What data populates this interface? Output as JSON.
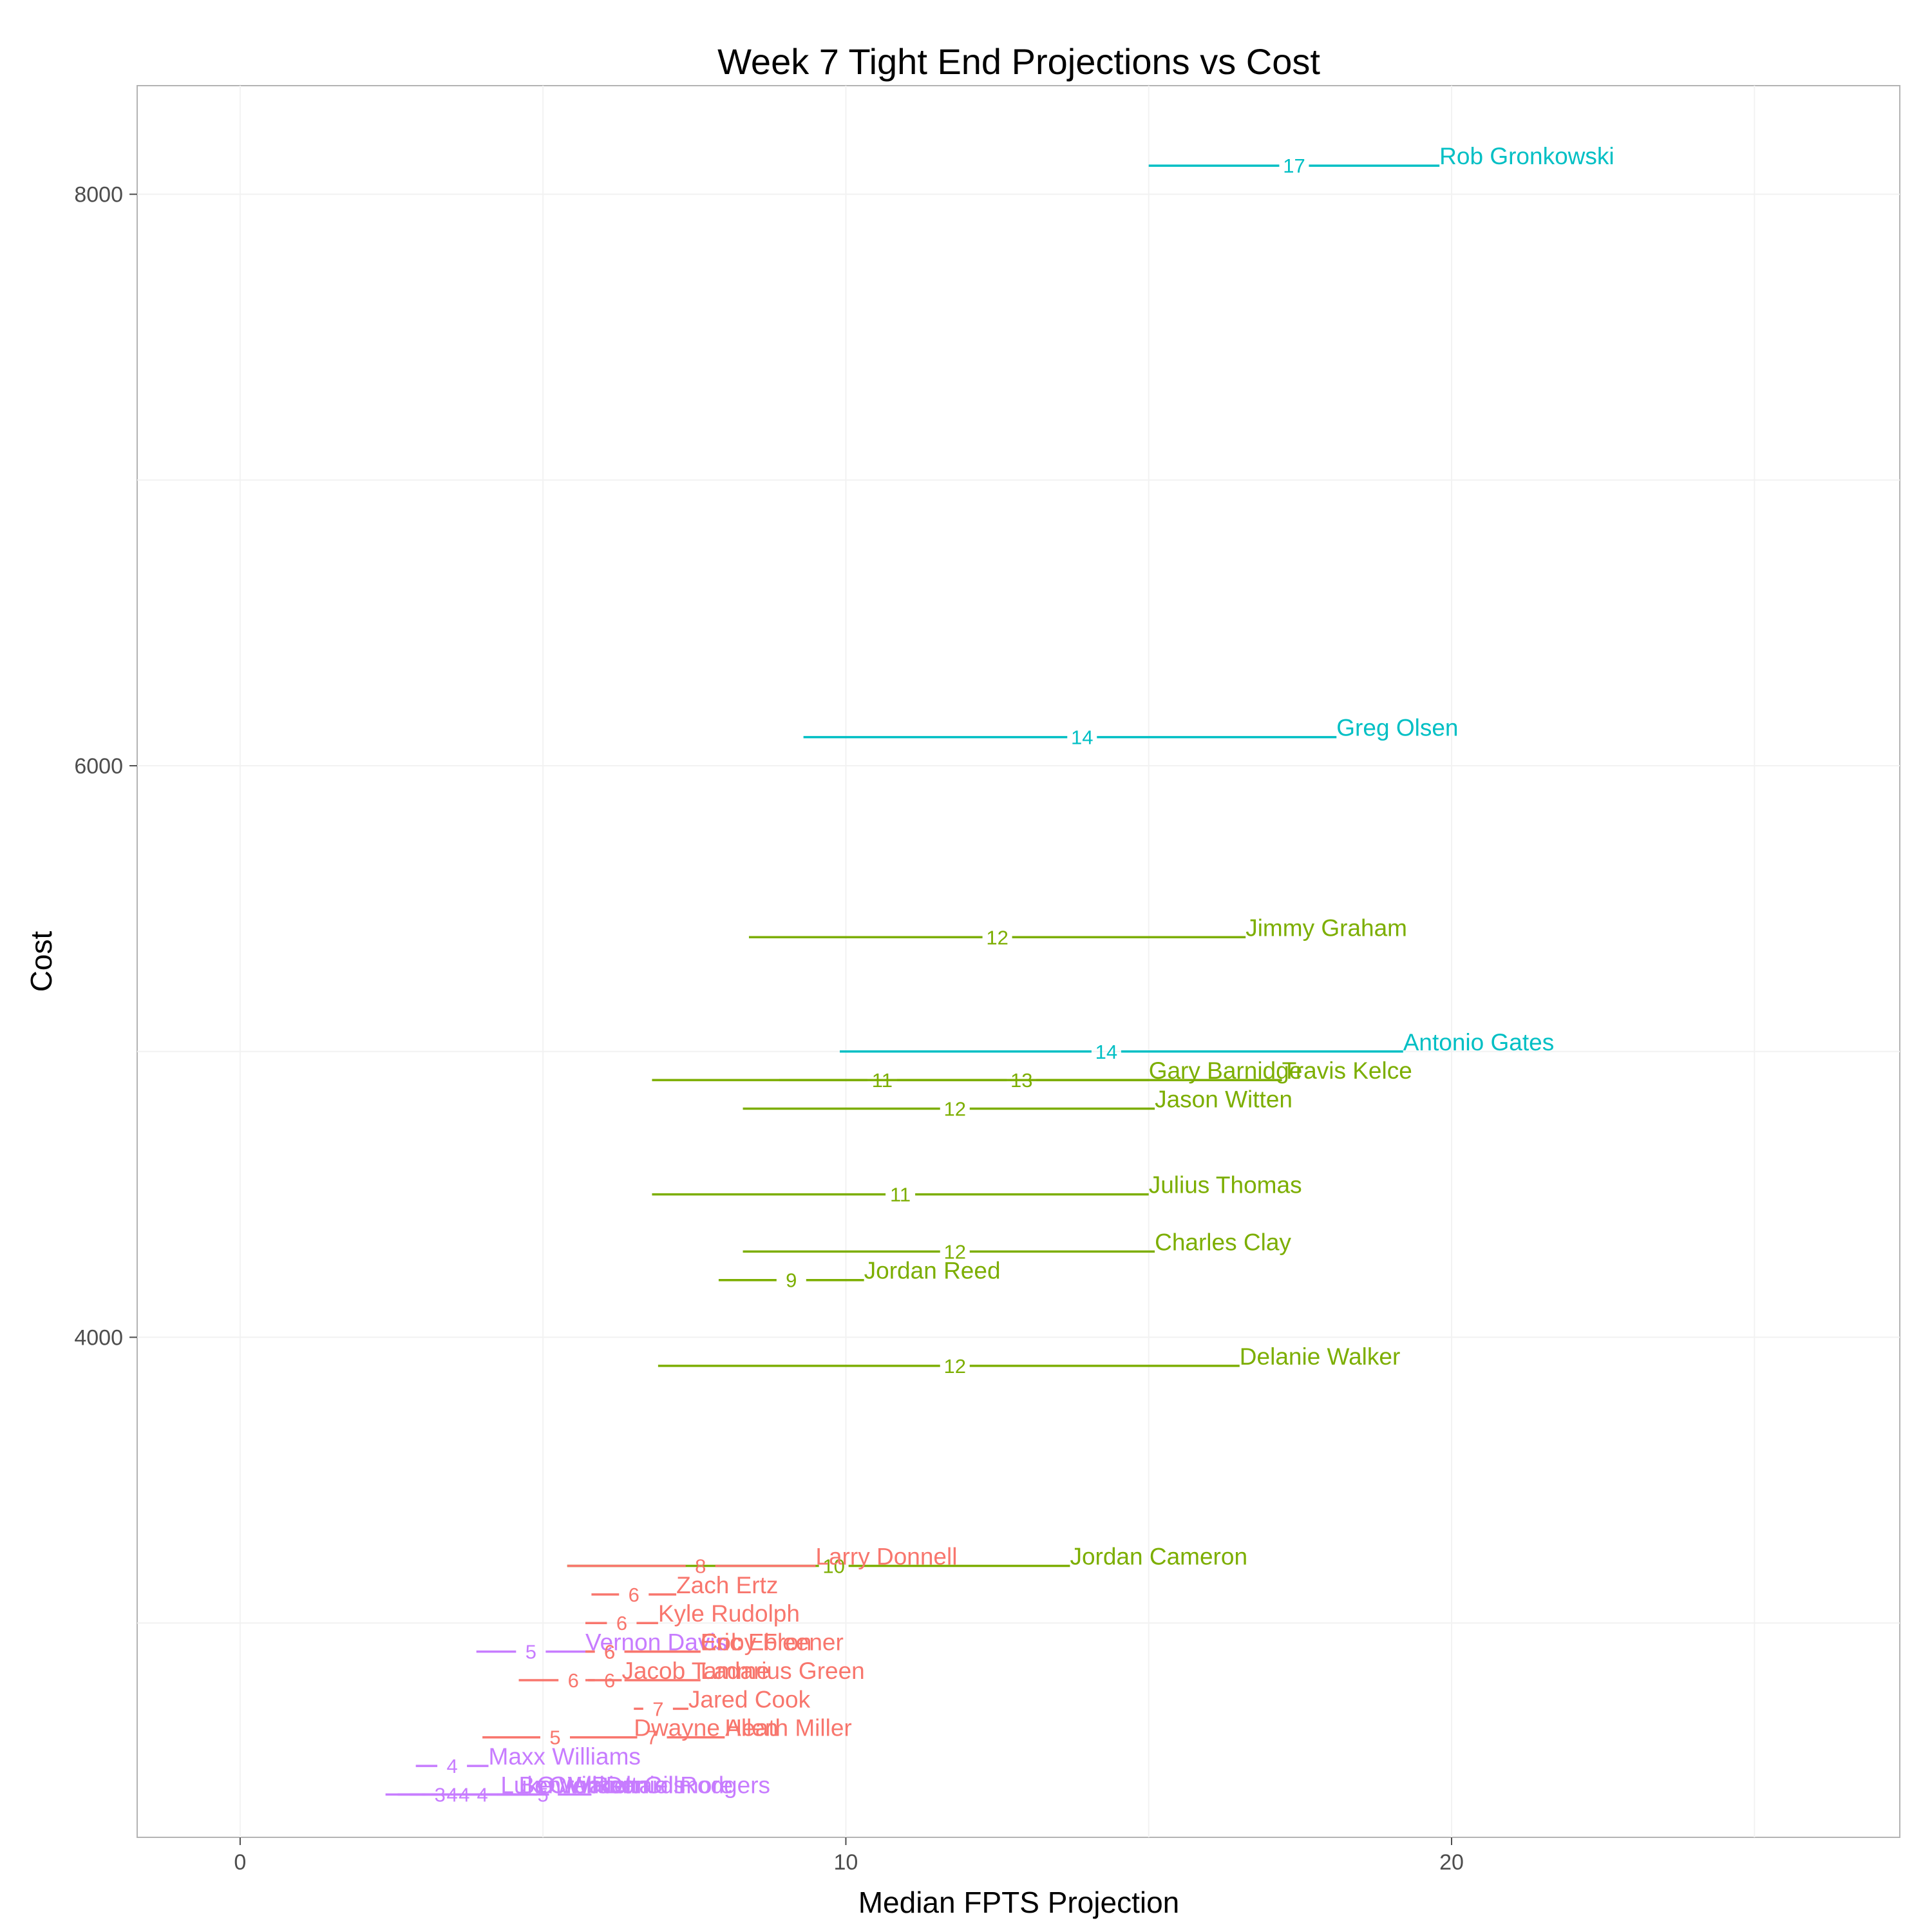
{
  "chart_data": {
    "type": "errorbar",
    "title": "Week 7 Tight End Projections vs Cost",
    "xlabel": "Median FPTS Projection",
    "ylabel": "Cost",
    "xlim": [
      -1.7,
      27.4
    ],
    "ylim": [
      2250,
      8380
    ],
    "xticks": [
      0,
      10,
      20
    ],
    "yticks": [
      4000,
      6000,
      8000
    ],
    "grid": true,
    "legend": "none",
    "series_colors": {
      "teal": "#00BFC4",
      "green": "#7CAE00",
      "red": "#F8766D",
      "purple": "#C77CFF"
    },
    "points": [
      {
        "name": "Rob Gronkowski",
        "color": "teal",
        "cost": 8100,
        "median": 17.4,
        "label": "17",
        "low": 15.0,
        "high": 19.8
      },
      {
        "name": "Greg Olsen",
        "color": "teal",
        "cost": 6100,
        "median": 13.9,
        "label": "14",
        "low": 9.3,
        "high": 18.1
      },
      {
        "name": "Jimmy Graham",
        "color": "green",
        "cost": 5400,
        "median": 12.5,
        "label": "12",
        "low": 8.4,
        "high": 16.6
      },
      {
        "name": "Antonio Gates",
        "color": "teal",
        "cost": 5000,
        "median": 14.3,
        "label": "14",
        "low": 9.9,
        "high": 19.2
      },
      {
        "name": "Gary Barnidge",
        "color": "green",
        "cost": 4900,
        "median": 10.6,
        "label": "11",
        "low": 6.8,
        "high": 15.0
      },
      {
        "name": "Travis Kelce",
        "color": "green",
        "cost": 4900,
        "median": 12.9,
        "label": "13",
        "low": 8.9,
        "high": 17.2
      },
      {
        "name": "Jason Witten",
        "color": "green",
        "cost": 4800,
        "median": 11.8,
        "label": "12",
        "low": 8.3,
        "high": 15.1
      },
      {
        "name": "Julius Thomas",
        "color": "green",
        "cost": 4500,
        "median": 10.9,
        "label": "11",
        "low": 6.8,
        "high": 15.0
      },
      {
        "name": "Charles Clay",
        "color": "green",
        "cost": 4300,
        "median": 11.8,
        "label": "12",
        "low": 8.3,
        "high": 15.1
      },
      {
        "name": "Jordan Reed",
        "color": "green",
        "cost": 4200,
        "median": 9.1,
        "label": "9",
        "low": 7.9,
        "high": 10.3
      },
      {
        "name": "Delanie Walker",
        "color": "green",
        "cost": 3900,
        "median": 11.8,
        "label": "12",
        "low": 6.9,
        "high": 16.5
      },
      {
        "name": "Jordan Cameron",
        "color": "green",
        "cost": 3200,
        "median": 9.8,
        "label": "10",
        "low": 5.4,
        "high": 13.7
      },
      {
        "name": "Larry Donnell",
        "color": "red",
        "cost": 3200,
        "median": 7.6,
        "label": "8",
        "low": 5.4,
        "high": 9.5
      },
      {
        "name": "Zach Ertz",
        "color": "red",
        "cost": 3100,
        "median": 6.5,
        "label": "6",
        "low": 5.8,
        "high": 7.2
      },
      {
        "name": "Kyle Rudolph",
        "color": "red",
        "cost": 3000,
        "median": 6.3,
        "label": "6",
        "low": 5.7,
        "high": 6.9
      },
      {
        "name": "Vernon Davis",
        "color": "purple",
        "cost": 2900,
        "median": 4.8,
        "label": "5",
        "low": 3.9,
        "high": 5.7
      },
      {
        "name": "Coby Fleener",
        "color": "red",
        "cost": 2900,
        "median": 6.1,
        "label": "6",
        "low": 5.7,
        "high": 7.6
      },
      {
        "name": "Eric Ebron",
        "color": "red",
        "cost": 2900,
        "median": 6.1,
        "label": "6",
        "low": 5.7,
        "high": 7.6
      },
      {
        "name": "Jacob Tamme",
        "color": "red",
        "cost": 2800,
        "median": 5.5,
        "label": "6",
        "low": 4.6,
        "high": 6.3
      },
      {
        "name": "Ladarius Green",
        "color": "red",
        "cost": 2800,
        "median": 6.1,
        "label": "6",
        "low": 5.7,
        "high": 7.6
      },
      {
        "name": "Jared Cook",
        "color": "red",
        "cost": 2700,
        "median": 6.9,
        "label": "7",
        "low": 6.5,
        "high": 7.4
      },
      {
        "name": "Dwayne Allen",
        "color": "red",
        "cost": 2600,
        "median": 5.2,
        "label": "5",
        "low": 4.0,
        "high": 6.5
      },
      {
        "name": "Heath Miller",
        "color": "red",
        "cost": 2600,
        "median": 6.8,
        "label": "7",
        "low": 6.2,
        "high": 8.0
      },
      {
        "name": "Maxx Williams",
        "color": "purple",
        "cost": 2500,
        "median": 3.5,
        "label": "4",
        "low": 2.9,
        "high": 4.1
      },
      {
        "name": "Luke Willson",
        "color": "purple",
        "cost": 2400,
        "median": 3.3,
        "label": "3",
        "low": 2.4,
        "high": 4.3
      },
      {
        "name": "Ben Watson",
        "color": "purple",
        "cost": 2400,
        "median": 3.5,
        "label": "4",
        "low": 2.6,
        "high": 4.6
      },
      {
        "name": "Owen Daniels",
        "color": "purple",
        "cost": 2400,
        "median": 3.7,
        "label": "4",
        "low": 2.8,
        "high": 4.9
      },
      {
        "name": "Crockett Gillmore",
        "color": "purple",
        "cost": 2400,
        "median": 4.0,
        "label": "4",
        "low": 3.0,
        "high": 5.1
      },
      {
        "name": "Richard Rodgers",
        "color": "purple",
        "cost": 2400,
        "median": 5.0,
        "label": "5",
        "low": 4.3,
        "high": 5.8
      }
    ]
  }
}
